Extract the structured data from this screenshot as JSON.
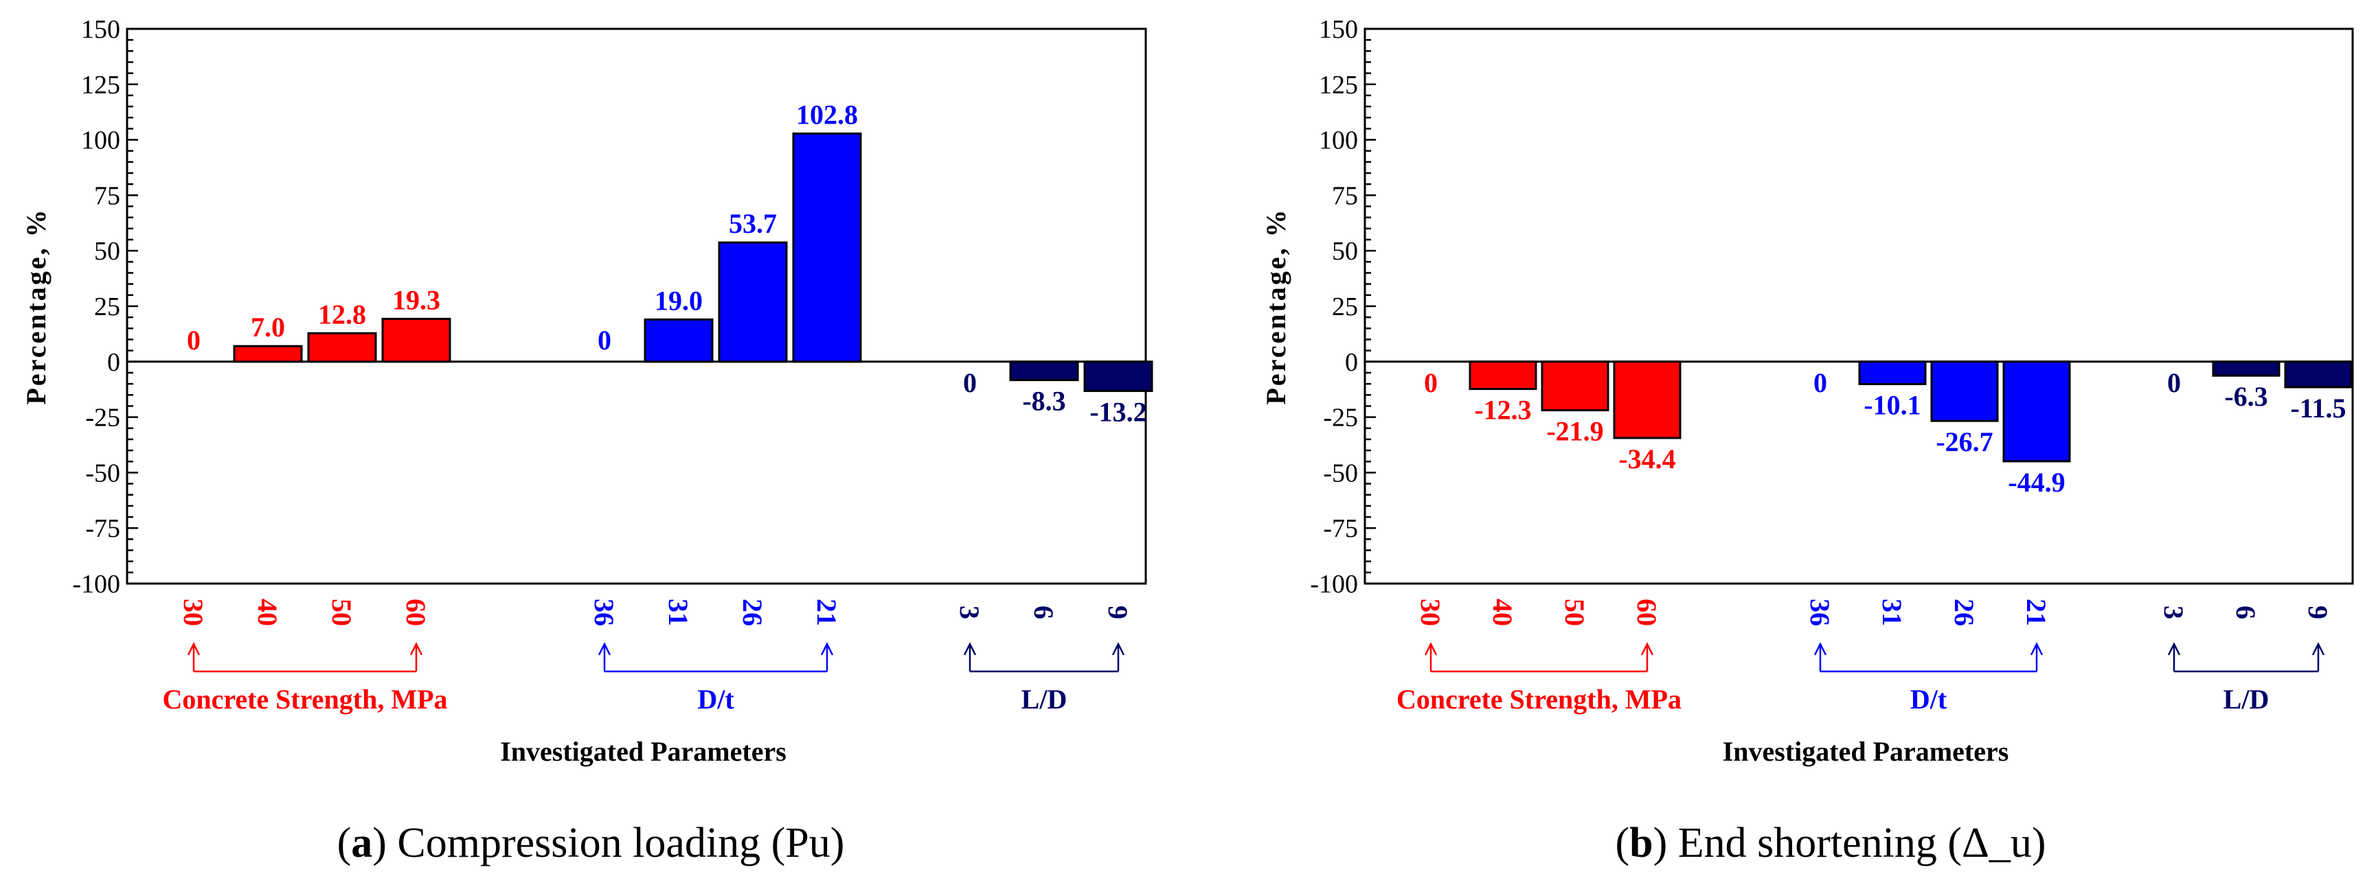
{
  "chart_data": [
    {
      "type": "bar",
      "caption_letter": "a",
      "caption_text": "Compression loading (Pu)",
      "ylabel": "Percentage, %",
      "xlabel": "Investigated Parameters",
      "ylim": [
        -100,
        150
      ],
      "yticks": [
        150,
        125,
        100,
        75,
        50,
        25,
        0,
        -25,
        -50,
        -75,
        -100
      ],
      "groups": [
        {
          "name": "Concrete Strength, MPa",
          "color": "#ff0000",
          "categories": [
            "30",
            "40",
            "50",
            "60"
          ],
          "values": [
            0,
            7.0,
            12.8,
            19.3
          ],
          "labels": [
            "0",
            "7.0",
            "12.8",
            "19.3"
          ]
        },
        {
          "name": "D/t",
          "color": "#0000ff",
          "categories": [
            "36",
            "31",
            "26",
            "21"
          ],
          "values": [
            0,
            19.0,
            53.7,
            102.8
          ],
          "labels": [
            "0",
            "19.0",
            "53.7",
            "102.8"
          ]
        },
        {
          "name": "L/D",
          "color": "#000066",
          "categories": [
            "3",
            "6",
            "9"
          ],
          "values": [
            0,
            -8.3,
            -13.2
          ],
          "labels": [
            "0",
            "-8.3",
            "-13.2"
          ]
        }
      ]
    },
    {
      "type": "bar",
      "caption_letter": "b",
      "caption_text": "End shortening (Δ_u)",
      "ylabel": "Percentage, %",
      "xlabel": "Investigated Parameters",
      "ylim": [
        -100,
        150
      ],
      "yticks": [
        150,
        125,
        100,
        75,
        50,
        25,
        0,
        -25,
        -50,
        -75,
        -100
      ],
      "groups": [
        {
          "name": "Concrete Strength, MPa",
          "color": "#ff0000",
          "categories": [
            "30",
            "40",
            "50",
            "60"
          ],
          "values": [
            0,
            -12.3,
            -21.9,
            -34.4
          ],
          "labels": [
            "0",
            "-12.3",
            "-21.9",
            "-34.4"
          ]
        },
        {
          "name": "D/t",
          "color": "#0000ff",
          "categories": [
            "36",
            "31",
            "26",
            "21"
          ],
          "values": [
            0,
            -10.1,
            -26.7,
            -44.9
          ],
          "labels": [
            "0",
            "-10.1",
            "-26.7",
            "-44.9"
          ]
        },
        {
          "name": "L/D",
          "color": "#000066",
          "categories": [
            "3",
            "6",
            "9"
          ],
          "values": [
            0,
            -6.3,
            -11.5
          ],
          "labels": [
            "0",
            "-6.3",
            "-11.5"
          ]
        }
      ]
    }
  ]
}
